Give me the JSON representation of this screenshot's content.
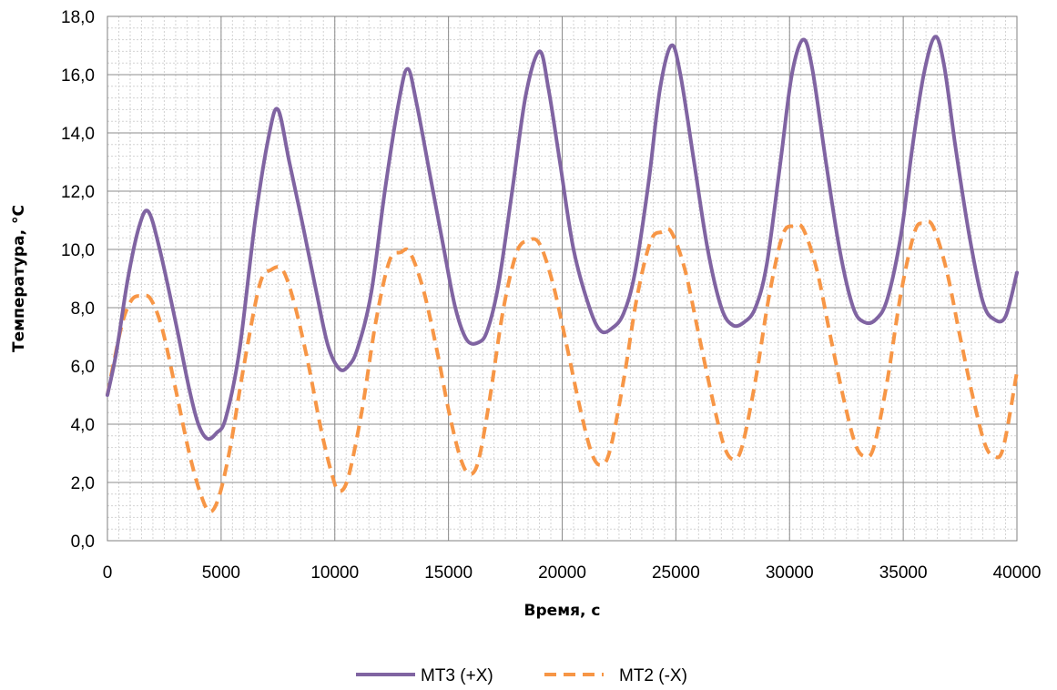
{
  "chart_data": {
    "type": "line",
    "title": "",
    "xlabel": "Время, с",
    "ylabel": "Температура, °С",
    "xlim": [
      0,
      40000
    ],
    "ylim": [
      0,
      18
    ],
    "x_ticks": [
      0,
      5000,
      10000,
      15000,
      20000,
      25000,
      30000,
      35000,
      40000
    ],
    "x_tick_labels": [
      "0",
      "5000",
      "10000",
      "15000",
      "20000",
      "25000",
      "30000",
      "35000",
      "40000"
    ],
    "y_ticks": [
      0,
      2,
      4,
      6,
      8,
      10,
      12,
      14,
      16,
      18
    ],
    "y_tick_labels": [
      "0,0",
      "2,0",
      "4,0",
      "6,0",
      "8,0",
      "10,0",
      "12,0",
      "14,0",
      "16,0",
      "18,0"
    ],
    "grid": "major and minor",
    "legend_position": "bottom",
    "series": [
      {
        "name": "МТ3 (+X)",
        "color": "#8064A2",
        "line_style": "solid",
        "points": [
          [
            0,
            5.0
          ],
          [
            400,
            6.5
          ],
          [
            900,
            9.0
          ],
          [
            1400,
            10.8
          ],
          [
            1800,
            11.3
          ],
          [
            2300,
            10.0
          ],
          [
            3000,
            7.5
          ],
          [
            3600,
            5.2
          ],
          [
            4000,
            4.0
          ],
          [
            4400,
            3.5
          ],
          [
            4800,
            3.7
          ],
          [
            5200,
            4.2
          ],
          [
            5800,
            6.5
          ],
          [
            6500,
            11.0
          ],
          [
            7100,
            13.9
          ],
          [
            7500,
            14.8
          ],
          [
            8000,
            13.0
          ],
          [
            8600,
            10.8
          ],
          [
            9200,
            8.5
          ],
          [
            9700,
            6.7
          ],
          [
            10200,
            5.9
          ],
          [
            10600,
            6.0
          ],
          [
            11000,
            6.6
          ],
          [
            11600,
            8.5
          ],
          [
            12200,
            12.0
          ],
          [
            12800,
            15.0
          ],
          [
            13200,
            16.2
          ],
          [
            13600,
            15.0
          ],
          [
            14200,
            12.5
          ],
          [
            14800,
            10.0
          ],
          [
            15300,
            8.0
          ],
          [
            15800,
            6.9
          ],
          [
            16300,
            6.8
          ],
          [
            16700,
            7.2
          ],
          [
            17200,
            8.8
          ],
          [
            17800,
            12.0
          ],
          [
            18400,
            15.3
          ],
          [
            19000,
            16.8
          ],
          [
            19400,
            15.5
          ],
          [
            19900,
            13.0
          ],
          [
            20500,
            10.0
          ],
          [
            21200,
            8.0
          ],
          [
            21700,
            7.2
          ],
          [
            22200,
            7.3
          ],
          [
            22700,
            7.8
          ],
          [
            23200,
            9.2
          ],
          [
            23800,
            12.3
          ],
          [
            24300,
            15.5
          ],
          [
            24800,
            17.0
          ],
          [
            25200,
            16.0
          ],
          [
            25800,
            13.0
          ],
          [
            26400,
            10.0
          ],
          [
            27000,
            8.0
          ],
          [
            27500,
            7.4
          ],
          [
            28000,
            7.5
          ],
          [
            28500,
            8.0
          ],
          [
            29000,
            9.5
          ],
          [
            29600,
            13.0
          ],
          [
            30100,
            16.0
          ],
          [
            30600,
            17.2
          ],
          [
            31000,
            16.2
          ],
          [
            31600,
            13.0
          ],
          [
            32200,
            10.0
          ],
          [
            32800,
            8.0
          ],
          [
            33300,
            7.5
          ],
          [
            33800,
            7.6
          ],
          [
            34300,
            8.3
          ],
          [
            34900,
            10.5
          ],
          [
            35400,
            13.5
          ],
          [
            35900,
            16.0
          ],
          [
            36400,
            17.3
          ],
          [
            36800,
            16.3
          ],
          [
            37300,
            13.5
          ],
          [
            37900,
            10.5
          ],
          [
            38500,
            8.2
          ],
          [
            39000,
            7.6
          ],
          [
            39500,
            7.7
          ],
          [
            40000,
            9.2
          ]
        ]
      },
      {
        "name": "МТ2 (-X)",
        "color": "#F79646",
        "line_style": "dashed",
        "points": [
          [
            0,
            5.0
          ],
          [
            300,
            6.2
          ],
          [
            700,
            7.6
          ],
          [
            1100,
            8.3
          ],
          [
            1500,
            8.4
          ],
          [
            1900,
            8.3
          ],
          [
            2400,
            7.3
          ],
          [
            3000,
            5.2
          ],
          [
            3600,
            3.0
          ],
          [
            4100,
            1.6
          ],
          [
            4500,
            1.0
          ],
          [
            4900,
            1.5
          ],
          [
            5400,
            3.2
          ],
          [
            6000,
            6.0
          ],
          [
            6700,
            8.8
          ],
          [
            7200,
            9.3
          ],
          [
            7700,
            9.3
          ],
          [
            8200,
            8.2
          ],
          [
            8800,
            6.2
          ],
          [
            9400,
            3.8
          ],
          [
            9900,
            2.2
          ],
          [
            10200,
            1.7
          ],
          [
            10600,
            2.2
          ],
          [
            11200,
            4.5
          ],
          [
            11800,
            7.5
          ],
          [
            12400,
            9.6
          ],
          [
            12900,
            9.9
          ],
          [
            13300,
            9.9
          ],
          [
            13900,
            8.6
          ],
          [
            14500,
            6.5
          ],
          [
            15000,
            4.5
          ],
          [
            15500,
            2.9
          ],
          [
            15900,
            2.3
          ],
          [
            16300,
            2.7
          ],
          [
            16800,
            4.8
          ],
          [
            17400,
            7.9
          ],
          [
            18000,
            9.9
          ],
          [
            18500,
            10.3
          ],
          [
            19000,
            10.2
          ],
          [
            19600,
            8.8
          ],
          [
            20200,
            6.7
          ],
          [
            20800,
            4.5
          ],
          [
            21300,
            3.0
          ],
          [
            21700,
            2.6
          ],
          [
            22100,
            3.1
          ],
          [
            22700,
            5.5
          ],
          [
            23300,
            8.4
          ],
          [
            23900,
            10.3
          ],
          [
            24400,
            10.6
          ],
          [
            24800,
            10.6
          ],
          [
            25400,
            9.3
          ],
          [
            26000,
            7.1
          ],
          [
            26600,
            4.9
          ],
          [
            27100,
            3.3
          ],
          [
            27500,
            2.8
          ],
          [
            27900,
            3.2
          ],
          [
            28500,
            5.5
          ],
          [
            29100,
            8.4
          ],
          [
            29700,
            10.5
          ],
          [
            30200,
            10.8
          ],
          [
            30600,
            10.7
          ],
          [
            31200,
            9.3
          ],
          [
            31800,
            7.0
          ],
          [
            32400,
            4.8
          ],
          [
            32900,
            3.3
          ],
          [
            33300,
            2.9
          ],
          [
            33700,
            3.2
          ],
          [
            34300,
            5.5
          ],
          [
            34900,
            8.5
          ],
          [
            35500,
            10.6
          ],
          [
            35900,
            10.9
          ],
          [
            36300,
            10.8
          ],
          [
            36900,
            9.3
          ],
          [
            37500,
            7.0
          ],
          [
            38100,
            4.8
          ],
          [
            38600,
            3.3
          ],
          [
            39000,
            2.9
          ],
          [
            39400,
            3.2
          ],
          [
            40000,
            5.8
          ]
        ]
      }
    ]
  }
}
